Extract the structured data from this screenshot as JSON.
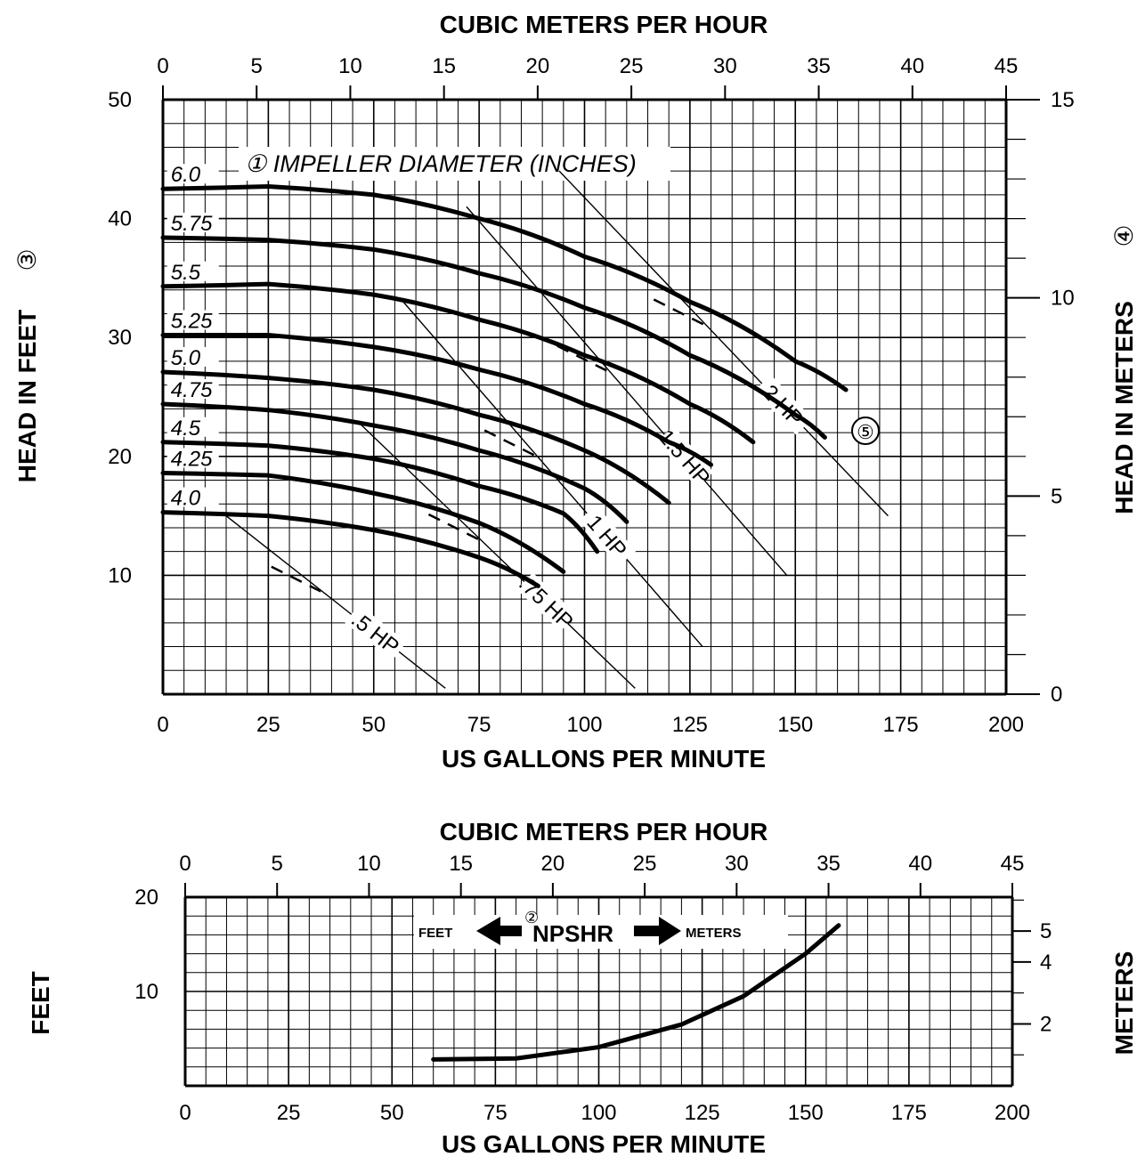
{
  "chart_data": [
    {
      "type": "line",
      "title": "",
      "xlabel": "US GALLONS PER MINUTE",
      "x2label": "CUBIC METERS PER HOUR",
      "ylabel": "HEAD IN FEET",
      "ylabel_marker": "③",
      "y2label": "HEAD IN METERS",
      "y2label_marker": "④",
      "xlim": [
        0,
        200
      ],
      "ylim": [
        0,
        50
      ],
      "x2lim": [
        0,
        45
      ],
      "y2lim": [
        0,
        15
      ],
      "x_ticks": [
        "0",
        "25",
        "50",
        "75",
        "100",
        "125",
        "150",
        "175",
        "200"
      ],
      "x2_ticks": [
        "0",
        "5",
        "10",
        "15",
        "20",
        "25",
        "30",
        "35",
        "40",
        "45"
      ],
      "y_ticks": [
        "10",
        "20",
        "30",
        "40",
        "50"
      ],
      "y2_ticks": [
        "0",
        "5",
        "10",
        "15"
      ],
      "grid": true,
      "annotation": "① IMPELLER DIAMETER (INCHES)",
      "power_marker": "⑤",
      "series": [
        {
          "name": "6.0",
          "x": [
            0,
            25,
            50,
            75,
            100,
            125,
            150,
            162
          ],
          "y": [
            42.5,
            42.7,
            42,
            40,
            36.8,
            33,
            28,
            25.6
          ]
        },
        {
          "name": "5.75",
          "x": [
            0,
            25,
            50,
            75,
            100,
            125,
            150,
            157
          ],
          "y": [
            38.4,
            38.2,
            37.4,
            35.4,
            32.5,
            28.5,
            23.5,
            21.6
          ]
        },
        {
          "name": "5.5",
          "x": [
            0,
            25,
            50,
            75,
            100,
            125,
            140
          ],
          "y": [
            34.3,
            34.5,
            33.6,
            31.5,
            28.5,
            24.4,
            21.2
          ]
        },
        {
          "name": "5.25",
          "x": [
            0,
            25,
            50,
            75,
            100,
            120,
            130
          ],
          "y": [
            30.2,
            30.2,
            29.2,
            27.3,
            24.4,
            21.2,
            19.3
          ]
        },
        {
          "name": "5.0",
          "x": [
            0,
            25,
            50,
            75,
            100,
            120
          ],
          "y": [
            27.1,
            26.6,
            25.6,
            23.5,
            20.5,
            16.1
          ]
        },
        {
          "name": "4.75",
          "x": [
            0,
            25,
            50,
            75,
            100,
            110
          ],
          "y": [
            24.4,
            23.9,
            22.6,
            20.5,
            17.3,
            14.5
          ]
        },
        {
          "name": "4.5",
          "x": [
            0,
            25,
            50,
            75,
            95,
            103
          ],
          "y": [
            21.2,
            20.9,
            19.8,
            17.5,
            15.2,
            12.0
          ]
        },
        {
          "name": "4.25",
          "x": [
            0,
            25,
            50,
            75,
            95
          ],
          "y": [
            18.6,
            18.4,
            16.9,
            14.4,
            10.3
          ]
        },
        {
          "name": "4.0",
          "x": [
            0,
            25,
            50,
            75,
            89
          ],
          "y": [
            15.3,
            15.0,
            13.8,
            11.5,
            9.1
          ]
        }
      ],
      "power_lines": [
        {
          "name": ".5 HP",
          "x": [
            15,
            67
          ],
          "y": [
            15,
            0.5
          ]
        },
        {
          "name": ".75 HP",
          "x": [
            46,
            112
          ],
          "y": [
            23,
            0.5
          ]
        },
        {
          "name": "1 HP",
          "x": [
            57,
            128
          ],
          "y": [
            33,
            4
          ]
        },
        {
          "name": "1.5 HP",
          "x": [
            72,
            148
          ],
          "y": [
            41,
            10
          ]
        },
        {
          "name": "2 HP",
          "x": [
            94,
            172
          ],
          "y": [
            44,
            15
          ]
        }
      ]
    },
    {
      "type": "line",
      "title": "NPSHR",
      "title_marker": "②",
      "xlabel": "US GALLONS PER MINUTE",
      "x2label": "CUBIC METERS PER HOUR",
      "ylabel": "FEET",
      "y2label": "METERS",
      "legend_left": "FEET",
      "legend_right": "METERS",
      "xlim": [
        0,
        200
      ],
      "ylim": [
        0,
        20
      ],
      "x2lim": [
        0,
        45
      ],
      "x_ticks": [
        "0",
        "25",
        "50",
        "75",
        "100",
        "125",
        "150",
        "175",
        "200"
      ],
      "x2_ticks": [
        "0",
        "5",
        "10",
        "15",
        "20",
        "25",
        "30",
        "35",
        "40",
        "45"
      ],
      "y_ticks": [
        "10",
        "20"
      ],
      "y2_ticks": [
        "2",
        "4",
        "5"
      ],
      "grid": true,
      "series": [
        {
          "name": "NPSHR",
          "x": [
            60,
            80,
            100,
            120,
            135,
            150,
            158
          ],
          "y": [
            2.8,
            2.9,
            4.1,
            6.5,
            9.5,
            14.0,
            17.0
          ]
        }
      ]
    }
  ]
}
